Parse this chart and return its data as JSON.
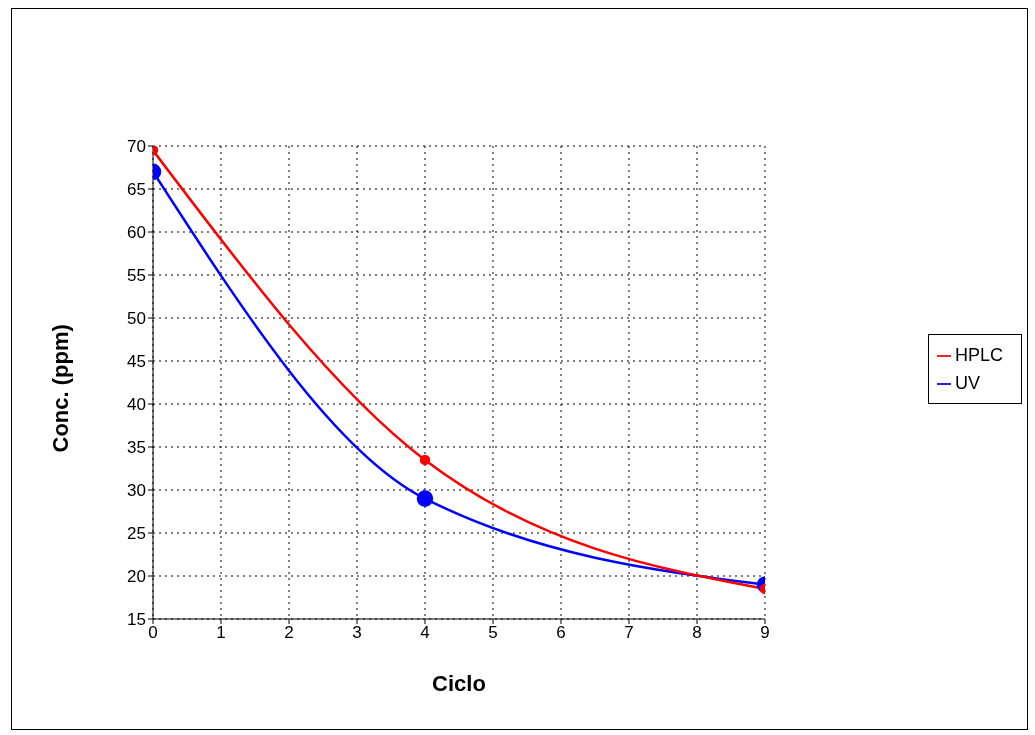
{
  "chart_data": {
    "type": "line",
    "xlabel": "Ciclo",
    "ylabel": "Conc. (ppm)",
    "x": [
      0,
      4,
      9
    ],
    "series": [
      {
        "name": "HPLC",
        "color": "#ff0000",
        "values": [
          69.5,
          33.5,
          18.5
        ]
      },
      {
        "name": "UV",
        "color": "#0000ff",
        "values": [
          67,
          29,
          19
        ]
      }
    ],
    "xlim": [
      0,
      9
    ],
    "xticks": [
      0,
      1,
      2,
      3,
      4,
      5,
      6,
      7,
      8,
      9
    ],
    "ylim": [
      15,
      70
    ],
    "yticks": [
      15,
      20,
      25,
      30,
      35,
      40,
      45,
      50,
      55,
      60,
      65,
      70
    ],
    "grid": true,
    "legend": "right",
    "marker": "circle",
    "line_style": "solid"
  }
}
